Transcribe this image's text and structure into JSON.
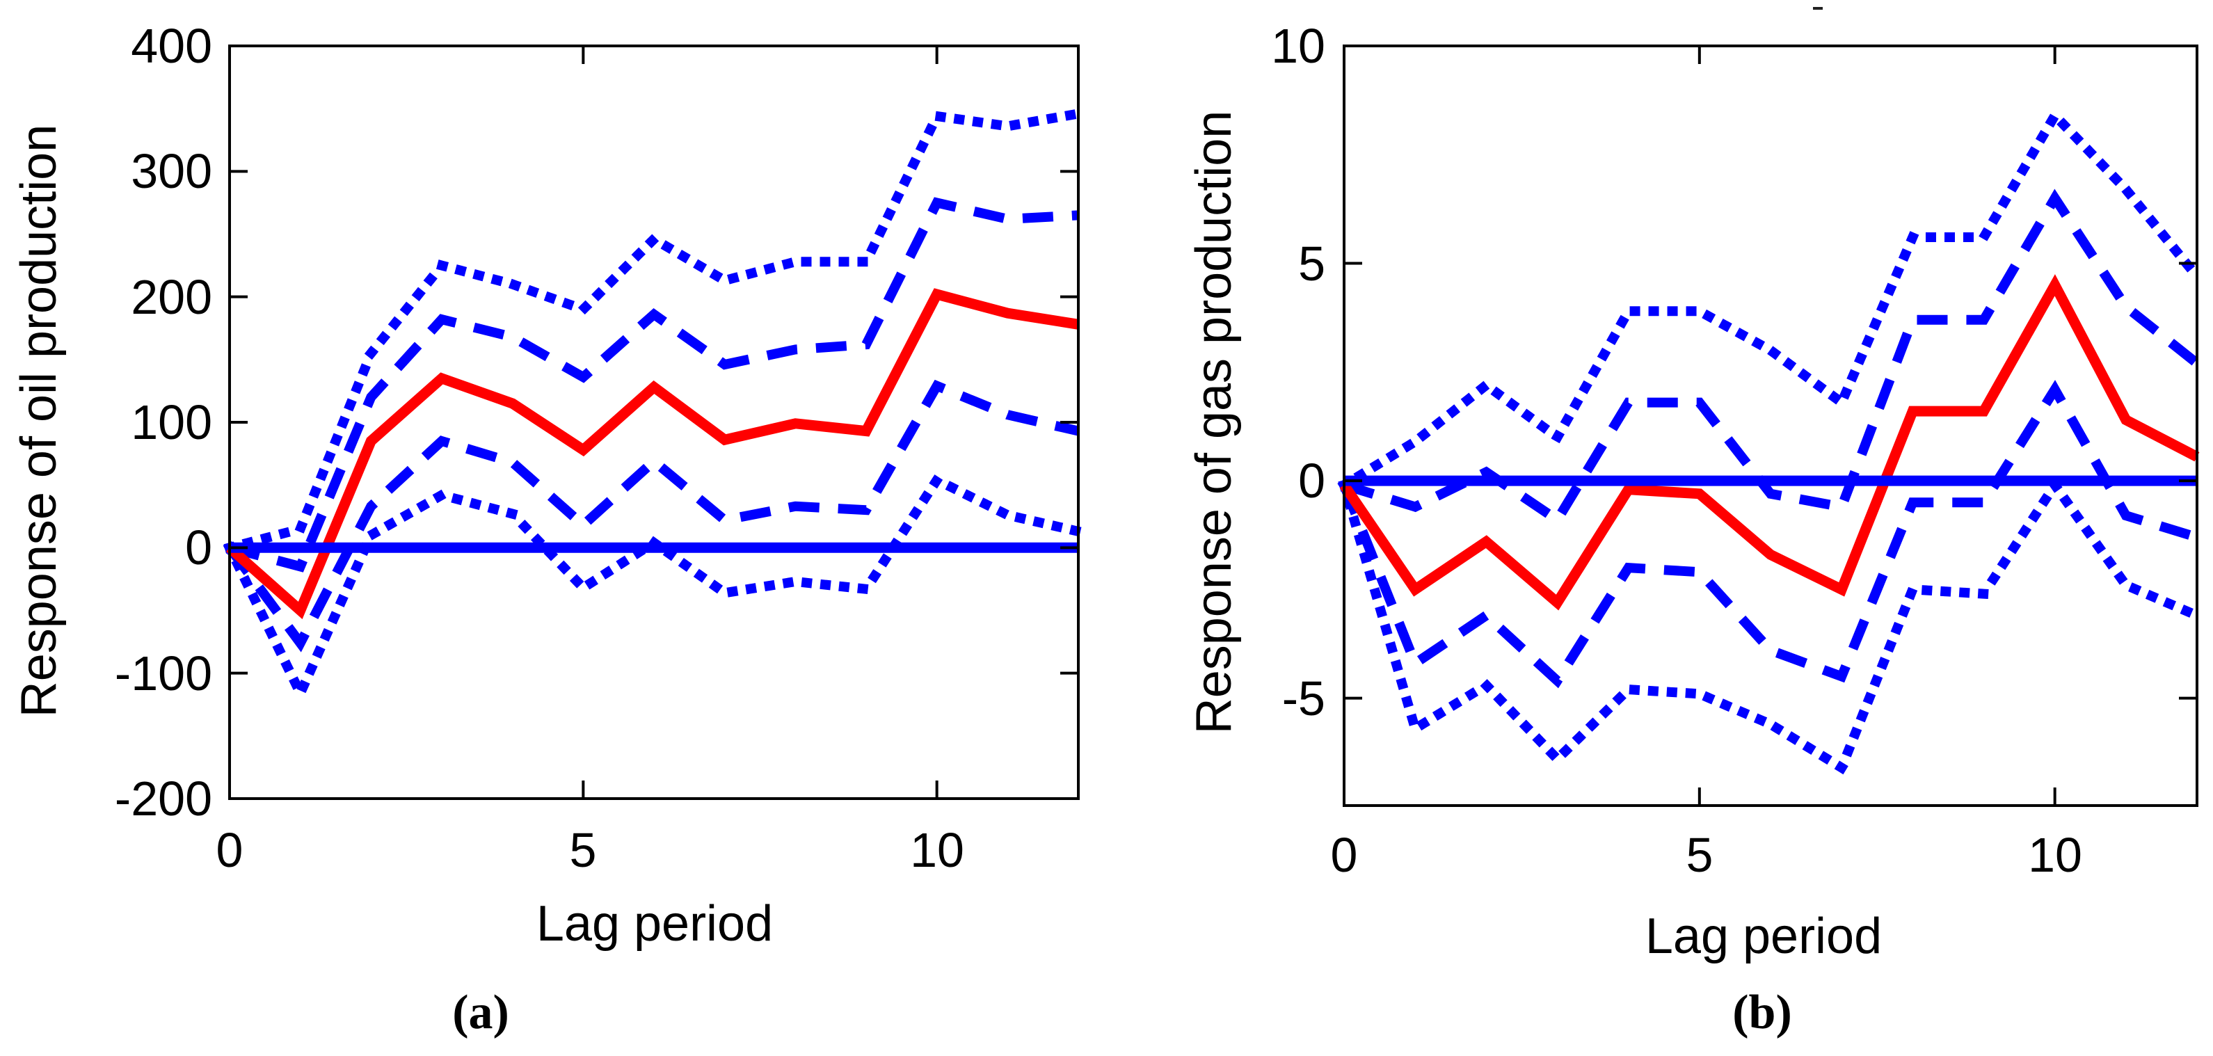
{
  "figure": {
    "background": "#ffffff",
    "axis_color": "#000000",
    "accent_red": "#ff0000",
    "accent_blue": "#0000ff"
  },
  "chart_data": [
    {
      "name": "oil-production-impulse-response",
      "type": "line",
      "title": "",
      "xlabel": "Lag period",
      "ylabel": "Response of oil production",
      "caption": "(a)",
      "x": [
        0,
        1,
        2,
        3,
        4,
        5,
        6,
        7,
        8,
        9,
        10,
        11,
        12
      ],
      "xlim": [
        0,
        12
      ],
      "ylim": [
        -200,
        400
      ],
      "x_tick_values": [
        0,
        5,
        10
      ],
      "x_tick_labels": [
        "0",
        "5",
        "10"
      ],
      "y_tick_values": [
        400,
        300,
        200,
        100,
        0,
        -100,
        -200
      ],
      "y_tick_labels": [
        "400",
        "300",
        "200",
        "100",
        "0",
        "-100",
        "-200"
      ],
      "grid": false,
      "legend": null,
      "series": [
        {
          "name": "ci-outer-upper",
          "style": "dotted",
          "color": "#0000ff",
          "width": 14,
          "values": [
            0,
            15,
            155,
            225,
            210,
            190,
            246,
            213,
            228,
            228,
            344,
            336,
            346
          ]
        },
        {
          "name": "ci-outer-lower",
          "style": "dotted",
          "color": "#0000ff",
          "width": 14,
          "values": [
            0,
            -116,
            10,
            42,
            27,
            -32,
            4,
            -36,
            -27,
            -33,
            54,
            26,
            13
          ]
        },
        {
          "name": "ci-inner-upper",
          "style": "dashed",
          "color": "#0000ff",
          "width": 14,
          "values": [
            0,
            -15,
            120,
            182,
            168,
            136,
            186,
            146,
            158,
            162,
            275,
            262,
            265
          ]
        },
        {
          "name": "ci-inner-lower",
          "style": "dashed",
          "color": "#0000ff",
          "width": 14,
          "values": [
            0,
            -76,
            33,
            85,
            68,
            18,
            69,
            22,
            33,
            30,
            129,
            106,
            93
          ]
        },
        {
          "name": "impulse-response",
          "style": "solid",
          "color": "#ff0000",
          "width": 15,
          "values": [
            0,
            -50,
            85,
            135,
            115,
            78,
            128,
            86,
            99,
            93,
            202,
            187,
            178
          ]
        },
        {
          "name": "zero-line",
          "style": "solid",
          "color": "#0000ff",
          "width": 15,
          "values": [
            0,
            0,
            0,
            0,
            0,
            0,
            0,
            0,
            0,
            0,
            0,
            0,
            0
          ]
        }
      ]
    },
    {
      "name": "gas-production-impulse-response",
      "type": "line",
      "title": "",
      "xlabel": "Lag period",
      "ylabel": "Response of gas production",
      "caption": "(b)",
      "x": [
        0,
        1,
        2,
        3,
        4,
        5,
        6,
        7,
        8,
        9,
        10,
        11,
        12
      ],
      "xlim": [
        0,
        12
      ],
      "ylim": [
        -7.5,
        10
      ],
      "x_tick_values": [
        0,
        5,
        10
      ],
      "x_tick_labels": [
        "0",
        "5",
        "10"
      ],
      "y_tick_values": [
        10,
        5,
        0,
        -5
      ],
      "y_tick_labels": [
        "10",
        "5",
        "0",
        "-5"
      ],
      "grid": false,
      "legend": null,
      "series": [
        {
          "name": "ci-outer-upper",
          "style": "dotted",
          "color": "#0000ff",
          "width": 14,
          "values": [
            -0.1,
            0.9,
            2.2,
            1.0,
            3.9,
            3.9,
            3.0,
            1.8,
            5.6,
            5.6,
            8.4,
            6.7,
            4.7
          ]
        },
        {
          "name": "ci-outer-lower",
          "style": "dotted",
          "color": "#0000ff",
          "width": 14,
          "values": [
            -0.1,
            -5.7,
            -4.7,
            -6.4,
            -4.8,
            -4.9,
            -5.6,
            -6.6,
            -2.5,
            -2.6,
            -0.1,
            -2.4,
            -3.1
          ]
        },
        {
          "name": "ci-inner-upper",
          "style": "dashed",
          "color": "#0000ff",
          "width": 14,
          "values": [
            -0.1,
            -0.6,
            0.2,
            -0.9,
            1.8,
            1.8,
            -0.3,
            -0.6,
            3.7,
            3.7,
            6.5,
            4.0,
            2.7
          ]
        },
        {
          "name": "ci-inner-lower",
          "style": "dashed",
          "color": "#0000ff",
          "width": 14,
          "values": [
            -0.1,
            -4.2,
            -3.1,
            -4.6,
            -2.0,
            -2.1,
            -3.9,
            -4.5,
            -0.5,
            -0.5,
            2.1,
            -0.8,
            -1.3
          ]
        },
        {
          "name": "impulse-response",
          "style": "solid",
          "color": "#ff0000",
          "width": 15,
          "values": [
            -0.1,
            -2.5,
            -1.4,
            -2.8,
            -0.2,
            -0.3,
            -1.7,
            -2.5,
            1.6,
            1.6,
            4.5,
            1.4,
            0.55
          ]
        },
        {
          "name": "zero-line",
          "style": "solid",
          "color": "#0000ff",
          "width": 15,
          "values": [
            0,
            0,
            0,
            0,
            0,
            0,
            0,
            0,
            0,
            0,
            0,
            0,
            0
          ]
        }
      ]
    }
  ]
}
